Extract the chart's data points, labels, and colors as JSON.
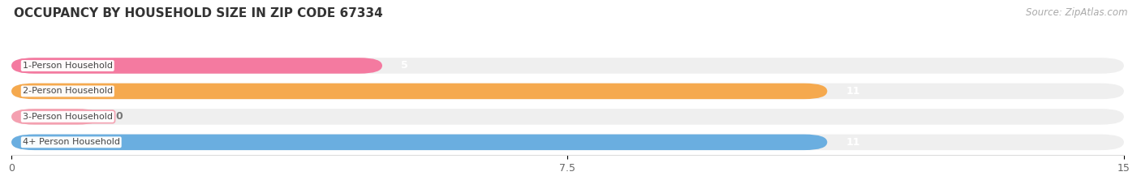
{
  "title": "OCCUPANCY BY HOUSEHOLD SIZE IN ZIP CODE 67334",
  "source": "Source: ZipAtlas.com",
  "categories": [
    "1-Person Household",
    "2-Person Household",
    "3-Person Household",
    "4+ Person Household"
  ],
  "values": [
    5,
    11,
    0,
    11
  ],
  "bar_colors": [
    "#f47aa0",
    "#f5a94e",
    "#f4a0b0",
    "#6aaee0"
  ],
  "xlim": [
    0,
    15
  ],
  "xticks": [
    0,
    7.5,
    15
  ],
  "background_color": "#ffffff",
  "bar_bg_color": "#efefef",
  "title_fontsize": 12,
  "label_fontsize": 8.5,
  "value_fontsize": 9,
  "source_fontsize": 9
}
